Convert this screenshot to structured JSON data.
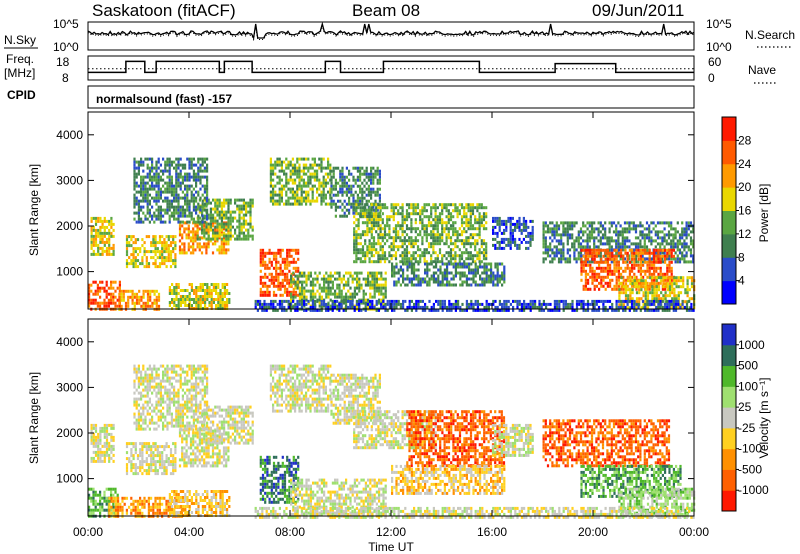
{
  "header": {
    "title": "Saskatoon (fitACF)",
    "beam": "Beam 08",
    "date": "09/Jun/2011"
  },
  "left_labels": {
    "nsky": "N.Sky",
    "freq_line1": "Freq.",
    "freq_line2": "[MHz]",
    "cpid": "CPID"
  },
  "right_labels": {
    "nsearch": "N.Search",
    "nave": "Nave"
  },
  "cpid_text": "normalsound (fast) -157",
  "chart_data": [
    {
      "type": "line",
      "name": "noise-panel",
      "left_axis": {
        "tick_labels": [
          "10^5",
          "10^0"
        ]
      },
      "right_axis": {
        "tick_labels": [
          "10^5",
          "10^0"
        ]
      },
      "series": [
        {
          "name": "N.Sky",
          "style": "solid"
        },
        {
          "name": "N.Search",
          "style": "dotted"
        }
      ]
    },
    {
      "type": "line",
      "name": "frequency-panel",
      "left_axis": {
        "label": "Freq. [MHz]",
        "ylim": [
          8,
          18
        ],
        "tick_labels": [
          "18",
          "8"
        ]
      },
      "right_axis": {
        "label": "Nave",
        "ylim": [
          0,
          60
        ],
        "tick_labels": [
          "60",
          "0"
        ]
      },
      "series": [
        {
          "name": "Freq.",
          "style": "solid",
          "x_hours": [
            0,
            1.05,
            1.5,
            2.25,
            2.7,
            5.2,
            5.4,
            6.5,
            6.6,
            8.2,
            9.4,
            10,
            10.4,
            11.5,
            11.7,
            15.5,
            18.1,
            18.5,
            20.9,
            24
          ],
          "values": [
            11,
            11,
            16,
            11,
            16,
            11,
            16,
            11,
            11,
            11,
            16,
            11,
            11,
            11,
            16,
            11,
            11,
            15,
            11,
            11
          ]
        },
        {
          "name": "Nave",
          "style": "dotted",
          "ylim": [
            0,
            60
          ],
          "x_hours": [
            0,
            24
          ],
          "values": [
            28,
            28
          ]
        }
      ]
    },
    {
      "type": "heatmap",
      "name": "power",
      "xlabel": "Time UT",
      "ylabel": "Slant Range [km]",
      "xlim": [
        0,
        24
      ],
      "ylim": [
        180,
        4500
      ],
      "x_tick_labels": [
        "00:00",
        "04:00",
        "08:00",
        "12:00",
        "16:00",
        "20:00",
        "00:00"
      ],
      "y_tick_labels": [
        "1000",
        "2000",
        "3000",
        "4000"
      ],
      "y_ticks": [
        1000,
        2000,
        3000,
        4000
      ],
      "colorbar": {
        "label": "Power [dB]",
        "tick_labels": [
          "4",
          "8",
          "12",
          "16",
          "20",
          "24",
          "28"
        ],
        "colors": [
          "#0000ff",
          "#2a4cc9",
          "#3f7f4f",
          "#5aa642",
          "#e9d700",
          "#ff9a00",
          "#ff5a00",
          "#ff1a00"
        ]
      },
      "regions": [
        {
          "t": [
            0.0,
            1.3
          ],
          "r": [
            180,
            800
          ],
          "level": 6
        },
        {
          "t": [
            1.2,
            2.8
          ],
          "r": [
            180,
            600
          ],
          "level": 5
        },
        {
          "t": [
            0.1,
            1.0
          ],
          "r": [
            1400,
            2200
          ],
          "level": 4
        },
        {
          "t": [
            1.5,
            3.5
          ],
          "r": [
            1100,
            1800
          ],
          "level": 4
        },
        {
          "t": [
            3.6,
            5.6
          ],
          "r": [
            1400,
            2100
          ],
          "level": 5
        },
        {
          "t": [
            4.3,
            6.5
          ],
          "r": [
            1700,
            2600
          ],
          "level": 3
        },
        {
          "t": [
            1.8,
            4.7
          ],
          "r": [
            2100,
            3500
          ],
          "level": 2
        },
        {
          "t": [
            3.2,
            5.6
          ],
          "r": [
            180,
            750
          ],
          "level": 4
        },
        {
          "t": [
            6.8,
            8.3
          ],
          "r": [
            500,
            1500
          ],
          "level": 6
        },
        {
          "t": [
            7.2,
            9.6
          ],
          "r": [
            2500,
            3500
          ],
          "level": 3
        },
        {
          "t": [
            8.0,
            11.8
          ],
          "r": [
            180,
            1000
          ],
          "level": 3
        },
        {
          "t": [
            9.6,
            11.6
          ],
          "r": [
            2200,
            3300
          ],
          "level": 2
        },
        {
          "t": [
            10.5,
            15.8
          ],
          "r": [
            1200,
            2500
          ],
          "level": 3
        },
        {
          "t": [
            12.0,
            16.5
          ],
          "r": [
            700,
            1200
          ],
          "level": 2
        },
        {
          "t": [
            16.0,
            17.6
          ],
          "r": [
            1500,
            2200
          ],
          "level": 1
        },
        {
          "t": [
            18.0,
            24.0
          ],
          "r": [
            1200,
            2100
          ],
          "level": 2
        },
        {
          "t": [
            19.5,
            23.2
          ],
          "r": [
            600,
            1500
          ],
          "level": 6
        },
        {
          "t": [
            21.0,
            24.0
          ],
          "r": [
            180,
            900
          ],
          "level": 4
        },
        {
          "t": [
            6.6,
            24.0
          ],
          "r": [
            180,
            380
          ],
          "level": 1
        }
      ]
    },
    {
      "type": "heatmap",
      "name": "velocity",
      "xlabel": "Time UT",
      "ylabel": "Slant Range [km]",
      "xlim": [
        0,
        24
      ],
      "ylim": [
        180,
        4500
      ],
      "x_tick_labels": [
        "00:00",
        "04:00",
        "08:00",
        "12:00",
        "16:00",
        "20:00",
        "00:00"
      ],
      "y_tick_labels": [
        "1000",
        "2000",
        "3000",
        "4000"
      ],
      "y_ticks": [
        1000,
        2000,
        3000,
        4000
      ],
      "colorbar": {
        "label": "Velocity [m s⁻¹]",
        "tick_labels": [
          "1000",
          "500",
          "100",
          "25",
          "-25",
          "-100",
          "-500",
          "-1000"
        ],
        "colors": [
          "#2030c8",
          "#2e6e5a",
          "#4fb82a",
          "#9fe070",
          "#c8c8c0",
          "#ffd020",
          "#ff9000",
          "#ff6000",
          "#ff1800"
        ]
      },
      "regions": [
        {
          "t": [
            0.0,
            1.2
          ],
          "r": [
            180,
            800
          ],
          "level": 2
        },
        {
          "t": [
            0.8,
            3.8
          ],
          "r": [
            180,
            600
          ],
          "level": 6
        },
        {
          "t": [
            0.1,
            1.0
          ],
          "r": [
            1400,
            2200
          ],
          "level": 4
        },
        {
          "t": [
            1.5,
            3.5
          ],
          "r": [
            1100,
            1800
          ],
          "level": 4
        },
        {
          "t": [
            3.6,
            5.6
          ],
          "r": [
            1300,
            2100
          ],
          "level": 4
        },
        {
          "t": [
            4.3,
            6.5
          ],
          "r": [
            1800,
            2600
          ],
          "level": 4
        },
        {
          "t": [
            1.8,
            4.7
          ],
          "r": [
            2100,
            3500
          ],
          "level": 4
        },
        {
          "t": [
            3.2,
            5.6
          ],
          "r": [
            180,
            750
          ],
          "level": 5
        },
        {
          "t": [
            6.8,
            8.3
          ],
          "r": [
            500,
            1500
          ],
          "level": 1
        },
        {
          "t": [
            7.2,
            9.6
          ],
          "r": [
            2500,
            3500
          ],
          "level": 4
        },
        {
          "t": [
            8.0,
            11.8
          ],
          "r": [
            180,
            1000
          ],
          "level": 4
        },
        {
          "t": [
            9.6,
            11.6
          ],
          "r": [
            2200,
            3300
          ],
          "level": 4
        },
        {
          "t": [
            10.5,
            13.8
          ],
          "r": [
            1700,
            2500
          ],
          "level": 4
        },
        {
          "t": [
            12.6,
            16.5
          ],
          "r": [
            1300,
            2500
          ],
          "level": 7
        },
        {
          "t": [
            12.0,
            16.5
          ],
          "r": [
            700,
            1300
          ],
          "level": 5
        },
        {
          "t": [
            16.0,
            17.6
          ],
          "r": [
            1500,
            2200
          ],
          "level": 4
        },
        {
          "t": [
            18.0,
            23.0
          ],
          "r": [
            1300,
            2300
          ],
          "level": 7
        },
        {
          "t": [
            19.5,
            23.5
          ],
          "r": [
            600,
            1300
          ],
          "level": 2
        },
        {
          "t": [
            21.0,
            24.0
          ],
          "r": [
            180,
            800
          ],
          "level": 3
        },
        {
          "t": [
            6.6,
            24.0
          ],
          "r": [
            180,
            380
          ],
          "level": 4
        }
      ]
    }
  ]
}
